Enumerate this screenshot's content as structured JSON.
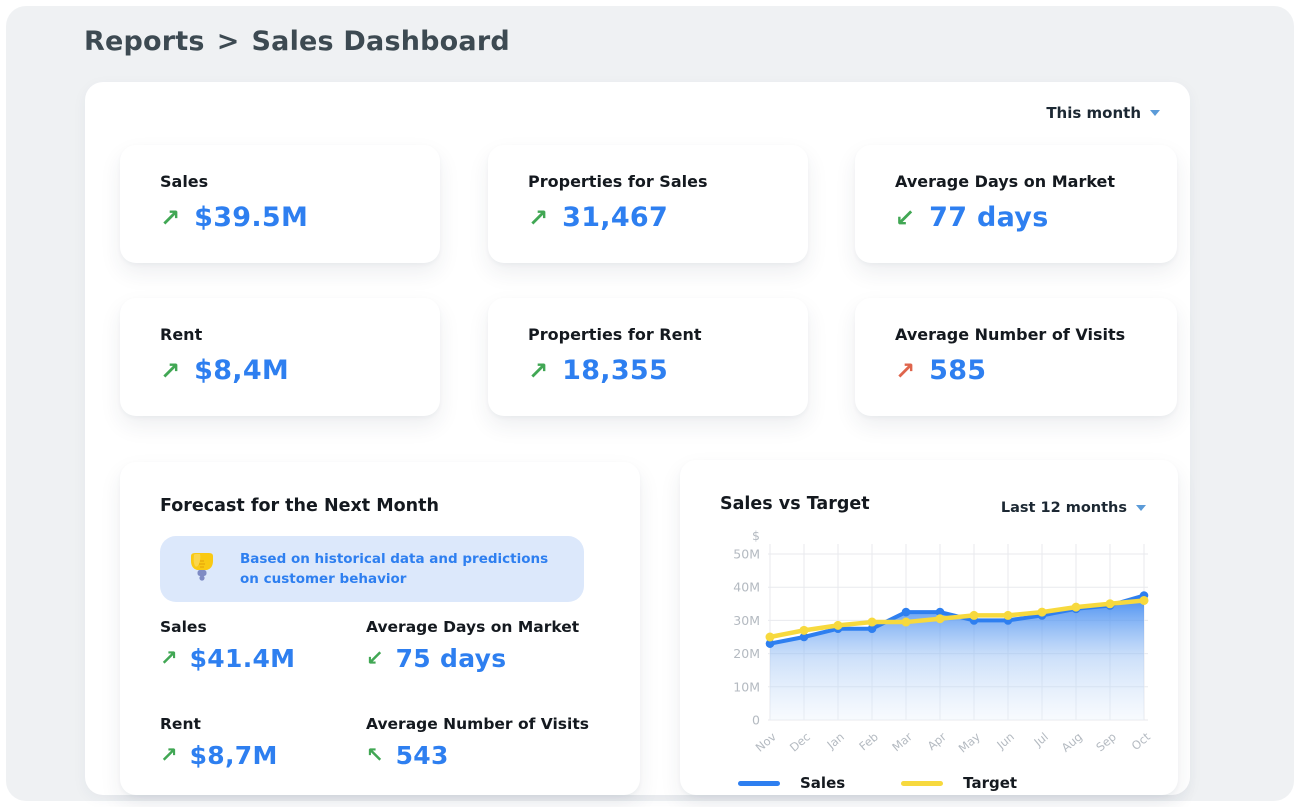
{
  "breadcrumb": {
    "section": "Reports",
    "separator": ">",
    "current": "Sales Dashboard"
  },
  "panel": {
    "period_selector": {
      "value": "This month"
    }
  },
  "kpis": [
    {
      "label": "Sales",
      "value": "$39.5M",
      "arrow_direction": "up-right",
      "arrow_glyph": "↗",
      "arrow_color": "#41a754"
    },
    {
      "label": "Properties for Sales",
      "value": "31,467",
      "arrow_direction": "up-right",
      "arrow_glyph": "↗",
      "arrow_color": "#41a754"
    },
    {
      "label": "Average Days on Market",
      "value": "77 days",
      "arrow_direction": "down-left",
      "arrow_glyph": "↙",
      "arrow_color": "#41a754"
    },
    {
      "label": "Rent",
      "value": "$8,4M",
      "arrow_direction": "up-right",
      "arrow_glyph": "↗",
      "arrow_color": "#41a754"
    },
    {
      "label": "Properties for Rent",
      "value": "18,355",
      "arrow_direction": "up-right",
      "arrow_glyph": "↗",
      "arrow_color": "#41a754"
    },
    {
      "label": "Average Number of Visits",
      "value": "585",
      "arrow_direction": "up-right",
      "arrow_glyph": "↗",
      "arrow_color": "#df654c"
    }
  ],
  "forecast": {
    "title": "Forecast for the Next Month",
    "note": {
      "icon": "lightbulb-icon",
      "text": "Based on historical data and predictions on customer behavior"
    },
    "items": [
      {
        "label": "Sales",
        "value": "$41.4M",
        "arrow_direction": "up-right",
        "arrow_glyph": "↗",
        "arrow_color": "#41a754"
      },
      {
        "label": "Average Days on Market",
        "value": "75 days",
        "arrow_direction": "down-left",
        "arrow_glyph": "↙",
        "arrow_color": "#41a754"
      },
      {
        "label": "Rent",
        "value": "$8,7M",
        "arrow_direction": "up-right",
        "arrow_glyph": "↗",
        "arrow_color": "#41a754"
      },
      {
        "label": "Average Number of Visits",
        "value": "543",
        "arrow_direction": "up-left",
        "arrow_glyph": "↖",
        "arrow_color": "#41a754"
      }
    ]
  },
  "chart_card": {
    "title": "Sales vs Target",
    "period_selector": {
      "value": "Last 12 months"
    }
  },
  "chart_data": {
    "type": "area",
    "title": "Sales vs Target",
    "categories": [
      "Nov",
      "Dec",
      "Jan",
      "Feb",
      "Mar",
      "Apr",
      "May",
      "Jun",
      "Jul",
      "Aug",
      "Sep",
      "Oct"
    ],
    "series": [
      {
        "name": "Sales",
        "color": "#2e7ff0",
        "fill": "gradient",
        "values": [
          23,
          25,
          27.5,
          27.5,
          32.5,
          32.5,
          30,
          30,
          31.5,
          33.5,
          34.5,
          37.5
        ]
      },
      {
        "name": "Target",
        "color": "#f7d93e",
        "fill": "none",
        "values": [
          25,
          27,
          28.5,
          29.5,
          29.5,
          30.5,
          31.5,
          31.5,
          32.5,
          34,
          35,
          36
        ]
      }
    ],
    "unit": "M",
    "currency_symbol": "$",
    "y_tick_labels": [
      "$",
      "50M",
      "40M",
      "30M",
      "20M",
      "10M",
      "0"
    ],
    "ylim": [
      0,
      50
    ],
    "y_step": 10,
    "grid": true,
    "legend_position": "bottom"
  },
  "colors": {
    "accent_blue": "#2e7ff0",
    "positive_green": "#41a754",
    "negative_red": "#df654c",
    "banner_bg": "#dce8fb",
    "heading": "#3d4a52",
    "title_text": "#14191f",
    "axis_gray": "#b4bac1",
    "grid_line": "#e8eaee",
    "page_bg": "#eff1f3",
    "card_bg": "#ffffff",
    "caret_blue": "#5b9bd8",
    "bulb_yellow": "#f9c913",
    "bulb_base": "#7e8bc4"
  }
}
